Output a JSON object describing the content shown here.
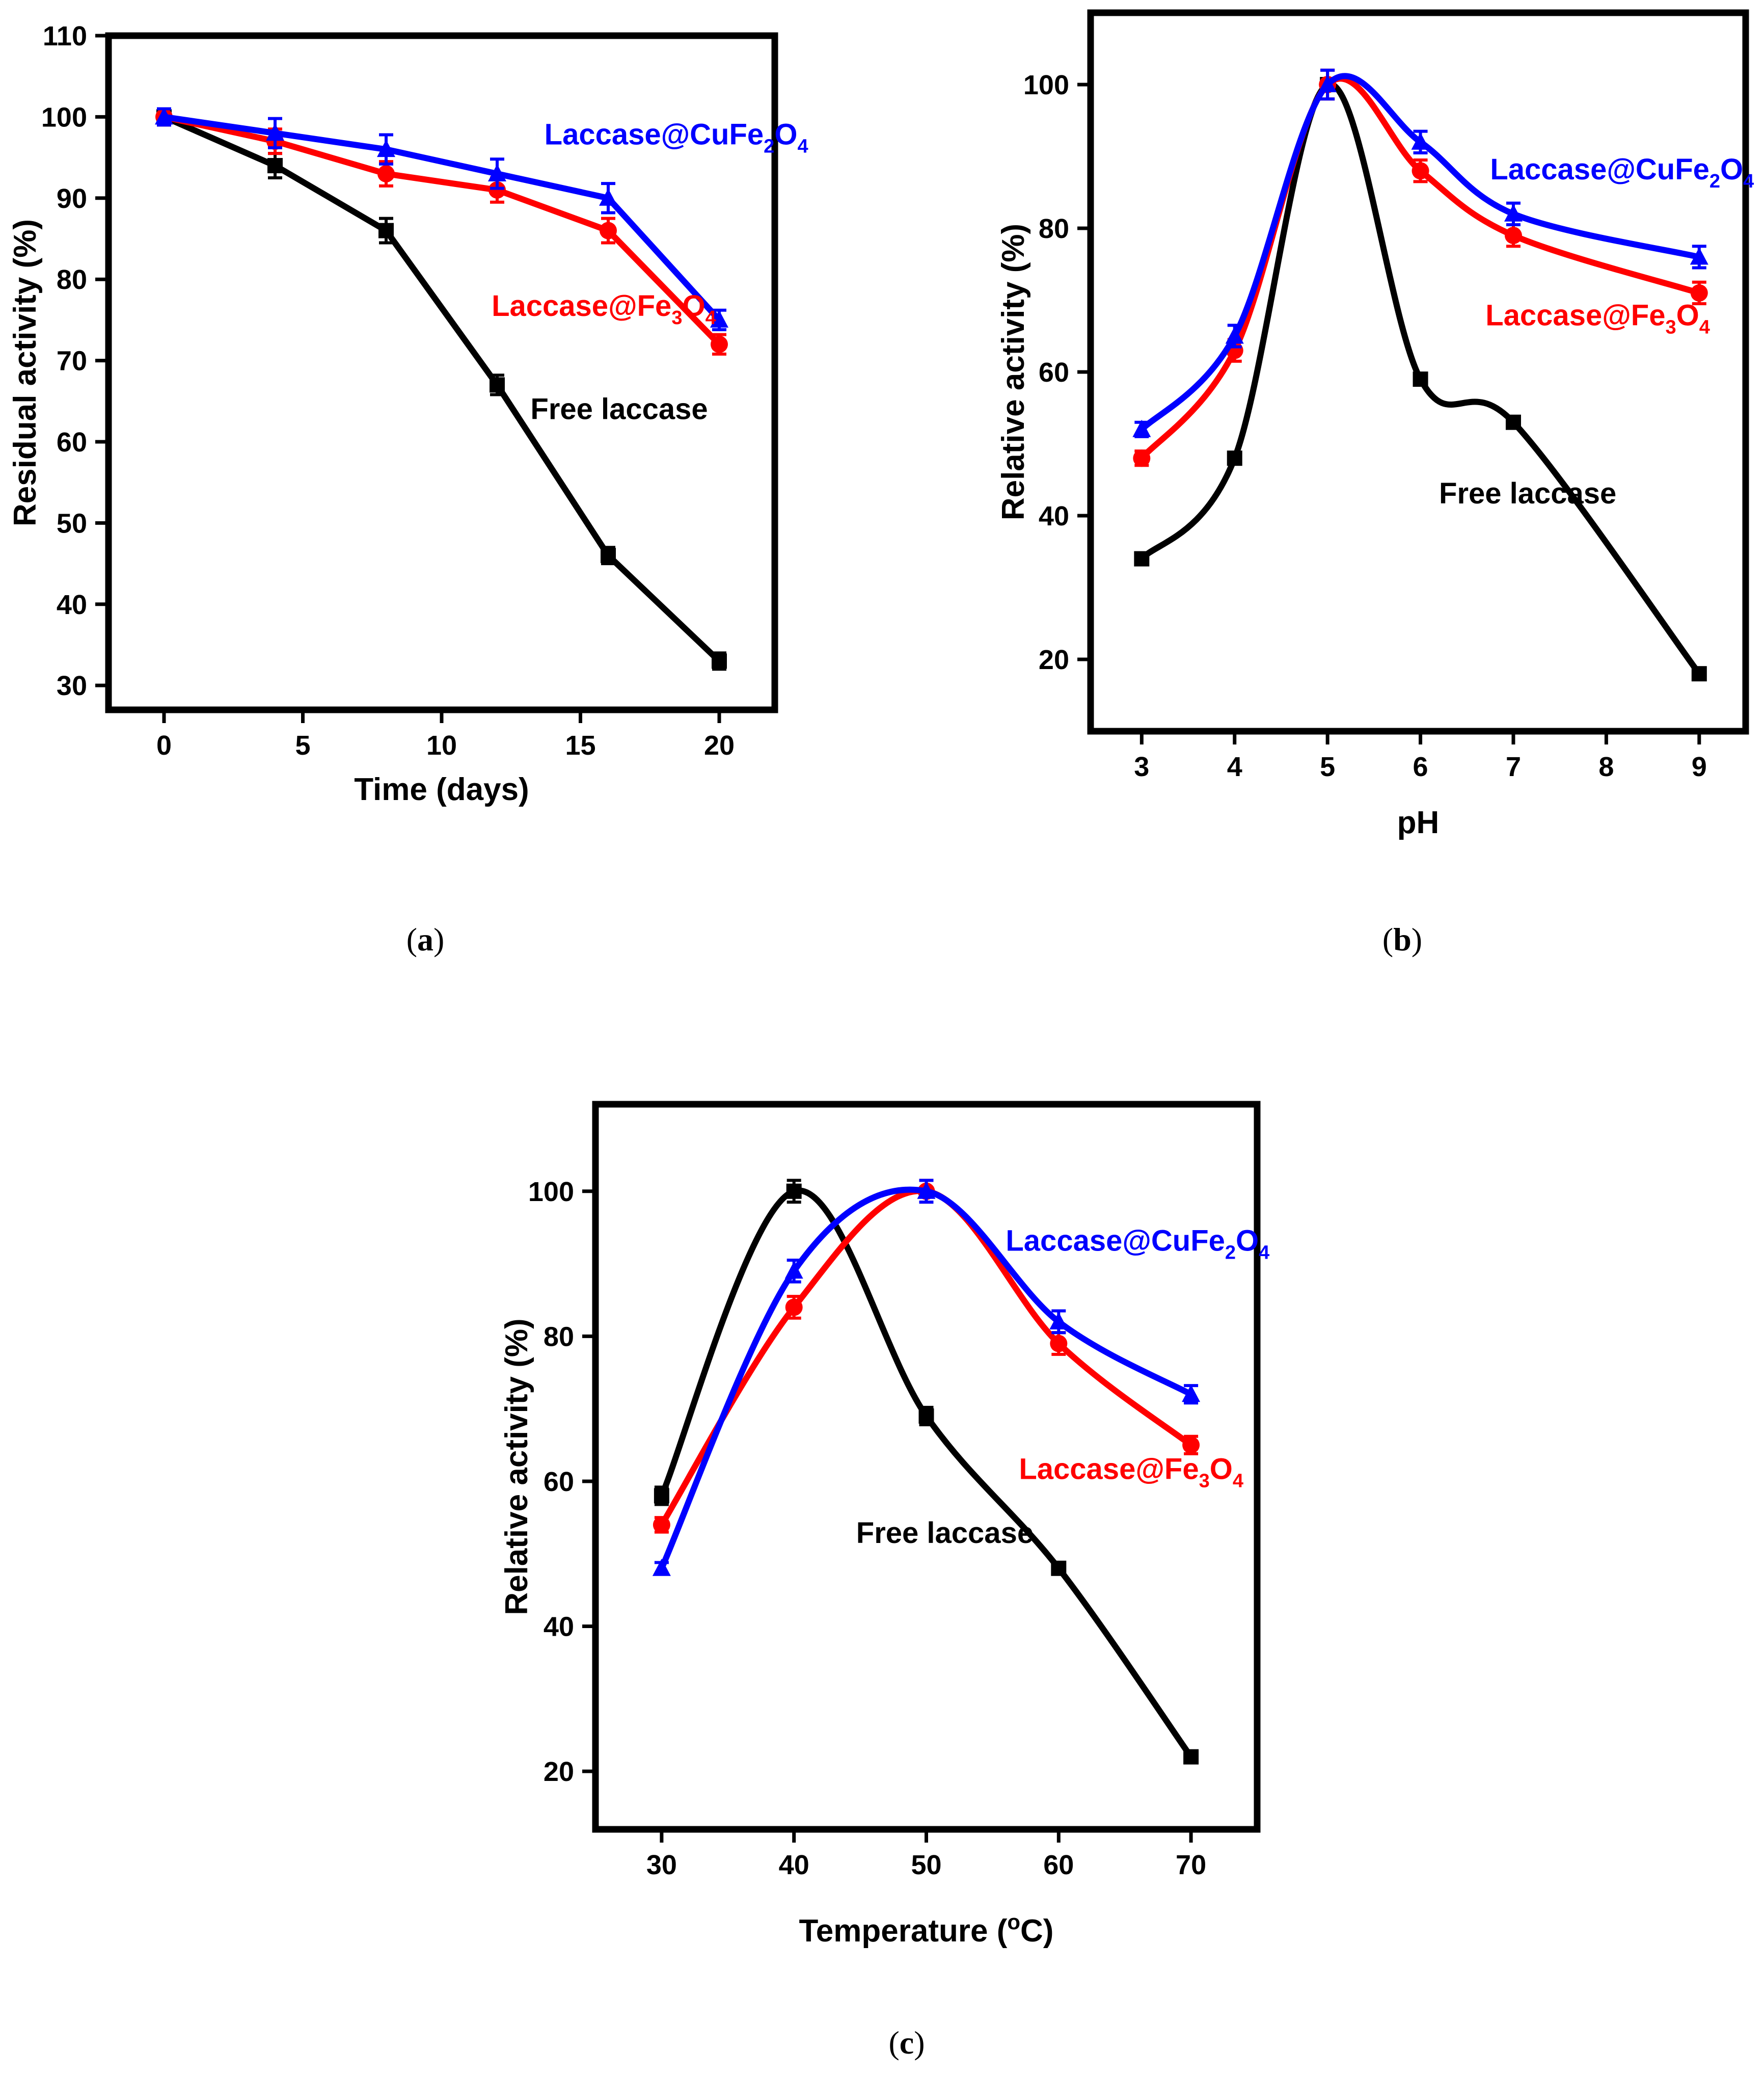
{
  "chart_data": [
    {
      "id": "a",
      "type": "line",
      "caption_letter": "a",
      "xlabel": "Time (days)",
      "ylabel": "Residual activity (%)",
      "xlim": [
        -2,
        22
      ],
      "ylim": [
        27,
        110
      ],
      "xticks": [
        0,
        5,
        10,
        15,
        20
      ],
      "yticks": [
        30,
        40,
        50,
        60,
        70,
        80,
        90,
        100,
        110
      ],
      "curve": "linear",
      "series": [
        {
          "name": "Free laccase",
          "color": "#000000",
          "marker": "square",
          "x": [
            0,
            4,
            8,
            12,
            16,
            20
          ],
          "y": [
            100,
            94,
            86,
            67,
            46,
            33
          ],
          "err": [
            1,
            1.5,
            1.5,
            1.2,
            1,
            1
          ]
        },
        {
          "name": "Laccase@Fe3O4",
          "color": "#ff0000",
          "marker": "circle",
          "x": [
            0,
            4,
            8,
            12,
            16,
            20
          ],
          "y": [
            100,
            97,
            93,
            91,
            86,
            72
          ],
          "err": [
            1,
            1.5,
            1.5,
            1.5,
            1.5,
            1.2
          ]
        },
        {
          "name": "Laccase@CuFe2O4",
          "color": "#0000ff",
          "marker": "triangle",
          "x": [
            0,
            4,
            8,
            12,
            16,
            20
          ],
          "y": [
            100,
            98,
            96,
            93,
            90,
            75
          ],
          "err": [
            1,
            1.8,
            1.8,
            1.8,
            1.8,
            1.2
          ]
        }
      ],
      "annotations": [
        {
          "series": "Laccase@CuFe2O4",
          "text": "Laccase@CuFe",
          "sub1": "2",
          "mid": "O",
          "sub2": "4",
          "x": 13.7,
          "y": 96.6
        },
        {
          "series": "Laccase@Fe3O4",
          "text": "Laccase@Fe",
          "sub1": "3",
          "mid": "O",
          "sub2": "4",
          "x": 11.8,
          "y": 75.5
        },
        {
          "series": "Free laccase",
          "text": "Free laccase",
          "x": 13.2,
          "y": 62.8
        }
      ]
    },
    {
      "id": "b",
      "type": "line",
      "caption_letter": "b",
      "xlabel": "pH",
      "ylabel": "Relative activity (%)",
      "xlim": [
        2.45,
        9.5
      ],
      "ylim": [
        10,
        110
      ],
      "xticks": [
        3,
        4,
        5,
        6,
        7,
        8,
        9
      ],
      "yticks": [
        20,
        40,
        60,
        80,
        100
      ],
      "curve": "smooth",
      "series": [
        {
          "name": "Free laccase",
          "color": "#000000",
          "marker": "square",
          "x": [
            3,
            4,
            5,
            6,
            7,
            9
          ],
          "y": [
            34,
            48,
            100,
            59,
            53,
            18
          ],
          "err": [
            0.8,
            0.8,
            0.8,
            0.8,
            0.8,
            0.8
          ]
        },
        {
          "name": "Laccase@Fe3O4",
          "color": "#ff0000",
          "marker": "circle",
          "x": [
            3,
            4,
            5,
            6,
            7,
            9
          ],
          "y": [
            48,
            63,
            100,
            88,
            79,
            71
          ],
          "err": [
            1,
            1.5,
            2,
            1.5,
            1.5,
            1.5
          ]
        },
        {
          "name": "Laccase@CuFe2O4",
          "color": "#0000ff",
          "marker": "triangle",
          "x": [
            3,
            4,
            5,
            6,
            7,
            9
          ],
          "y": [
            52,
            65,
            100,
            92,
            82,
            76
          ],
          "err": [
            1,
            1.5,
            2,
            1.5,
            1.5,
            1.5
          ]
        }
      ],
      "annotations": [
        {
          "series": "Laccase@CuFe2O4",
          "text": "Laccase@CuFe",
          "sub1": "2",
          "mid": "O",
          "sub2": "4",
          "x": 6.75,
          "y": 86.8
        },
        {
          "series": "Laccase@Fe3O4",
          "text": "Laccase@Fe",
          "sub1": "3",
          "mid": "O",
          "sub2": "4",
          "x": 6.7,
          "y": 66.5
        },
        {
          "series": "Free laccase",
          "text": "Free laccase",
          "x": 6.2,
          "y": 41.7
        }
      ]
    },
    {
      "id": "c",
      "type": "line",
      "caption_letter": "c",
      "xlabel": "Temperature (",
      "xlabel_sup": "o",
      "xlabel_end": "C)",
      "ylabel": "Relative activity (%)",
      "xlim": [
        25,
        75
      ],
      "ylim": [
        12,
        112
      ],
      "xticks": [
        30,
        40,
        50,
        60,
        70
      ],
      "yticks": [
        20,
        40,
        60,
        80,
        100
      ],
      "curve": "smooth",
      "series": [
        {
          "name": "Free laccase",
          "color": "#000000",
          "marker": "square",
          "x": [
            30,
            40,
            50,
            60,
            70
          ],
          "y": [
            58,
            100,
            69,
            48,
            22
          ],
          "err": [
            1.2,
            1.5,
            1.2,
            0.8,
            0.8
          ]
        },
        {
          "name": "Laccase@Fe3O4",
          "color": "#ff0000",
          "marker": "circle",
          "x": [
            30,
            40,
            50,
            60,
            70
          ],
          "y": [
            54,
            84,
            100,
            79,
            65
          ],
          "err": [
            1,
            1.5,
            1.5,
            1.5,
            1.2
          ]
        },
        {
          "name": "Laccase@CuFe2O4",
          "color": "#0000ff",
          "marker": "triangle",
          "x": [
            30,
            40,
            50,
            60,
            70
          ],
          "y": [
            48,
            89,
            100,
            82,
            72
          ],
          "err": [
            0.8,
            1.5,
            1.5,
            1.5,
            1.2
          ]
        }
      ],
      "annotations": [
        {
          "series": "Laccase@CuFe2O4",
          "text": "Laccase@CuFe",
          "sub1": "2",
          "mid": "O",
          "sub2": "4",
          "x": 56,
          "y": 91.8
        },
        {
          "series": "Laccase@Fe3O4",
          "text": "Laccase@Fe",
          "sub1": "3",
          "mid": "O",
          "sub2": "4",
          "x": 57,
          "y": 60.3
        },
        {
          "series": "Free laccase",
          "text": "Free laccase",
          "x": 44.7,
          "y": 51.5
        }
      ]
    }
  ]
}
